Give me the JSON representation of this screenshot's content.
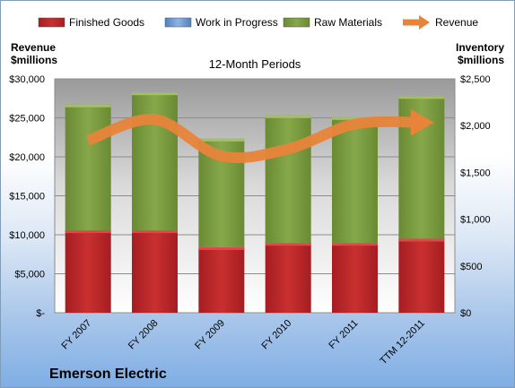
{
  "chart_data": {
    "type": "bar",
    "stacked": true,
    "title": "12-Month Periods",
    "company": "Emerson Electric",
    "ylabel_left": [
      "Revenue",
      "$millions"
    ],
    "ylabel_right": [
      "Inventory",
      "$millions"
    ],
    "categories": [
      "FY 2007",
      "FY 2008",
      "FY 2009",
      "FY 2010",
      "FY 2011",
      "TTM 12-2011"
    ],
    "y_left": {
      "min": 0,
      "max": 30000,
      "ticks": [
        "$-",
        "$5,000",
        "$10,000",
        "$15,000",
        "$20,000",
        "$25,000",
        "$30,000"
      ]
    },
    "y_right": {
      "min": 0,
      "max": 2500,
      "ticks": [
        "$0",
        "$500",
        "$1,000",
        "$1,500",
        "$2,000",
        "$2,500"
      ]
    },
    "legend_position": "top",
    "grid": true,
    "series": [
      {
        "name": "Finished Goods",
        "axis": "right",
        "kind": "bar",
        "color": "#c0282c",
        "values": [
          880,
          880,
          700,
          745,
          745,
          790
        ]
      },
      {
        "name": "Work in Progress",
        "axis": "right",
        "kind": "bar",
        "color": "#4f81bd",
        "values": [
          0,
          0,
          0,
          0,
          0,
          0
        ]
      },
      {
        "name": "Raw Materials",
        "axis": "right",
        "kind": "bar",
        "color": "#77933c",
        "values": [
          1345,
          1475,
          1160,
          1365,
          1345,
          1525
        ]
      },
      {
        "name": "Revenue",
        "axis": "left",
        "kind": "line",
        "color": "#e8843a",
        "values": [
          22100,
          24800,
          20100,
          21000,
          24200,
          24400
        ]
      }
    ]
  }
}
